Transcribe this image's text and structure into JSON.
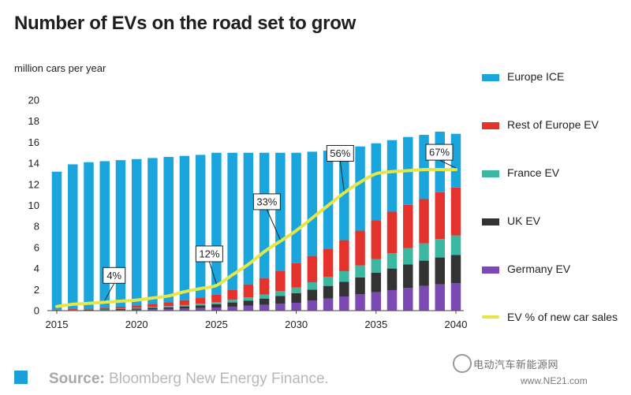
{
  "title": "Number of EVs on the road set to grow",
  "ylabel": "million cars per year",
  "source": {
    "prefix": "Source:",
    "text": "Bloomberg New Energy Finance."
  },
  "watermark": {
    "text": "电动汽车新能源网",
    "url": "www.NE21.com"
  },
  "colors": {
    "europe_ice": "#1aa6dc",
    "rest_of_europe_ev": "#e3332c",
    "france_ev": "#3bb7a2",
    "uk_ev": "#333333",
    "germany_ev": "#7c4ab3",
    "ev_share_line": "#e4e649",
    "source_box": "#1a9fd8"
  },
  "legend": [
    {
      "key": "europe_ice",
      "label": "Europe ICE",
      "kind": "bar"
    },
    {
      "key": "rest_of_europe_ev",
      "label": "Rest of Europe EV",
      "kind": "bar"
    },
    {
      "key": "france_ev",
      "label": "France EV",
      "kind": "bar"
    },
    {
      "key": "uk_ev",
      "label": "UK EV",
      "kind": "bar"
    },
    {
      "key": "germany_ev",
      "label": "Germany EV",
      "kind": "bar"
    },
    {
      "key": "ev_share_line",
      "label": "EV % of new car sales",
      "kind": "line"
    }
  ],
  "chart_data": {
    "type": "bar",
    "stacked": true,
    "title": "Number of EVs on the road set to grow",
    "ylabel": "million cars per year",
    "ylim": [
      0,
      20
    ],
    "yticks": [
      0,
      2,
      4,
      6,
      8,
      10,
      12,
      14,
      16,
      18,
      20
    ],
    "x": [
      2015,
      2016,
      2017,
      2018,
      2019,
      2020,
      2021,
      2022,
      2023,
      2024,
      2025,
      2026,
      2027,
      2028,
      2029,
      2030,
      2031,
      2032,
      2033,
      2034,
      2035,
      2036,
      2037,
      2038,
      2039,
      2040
    ],
    "xtick_labels": [
      "2015",
      "2020",
      "2025",
      "2030",
      "2035",
      "2040"
    ],
    "grid": false,
    "legend_position": "right",
    "series": [
      {
        "name": "Germany EV",
        "key": "germany_ev",
        "values": [
          0.02,
          0.03,
          0.04,
          0.06,
          0.08,
          0.1,
          0.13,
          0.16,
          0.2,
          0.25,
          0.3,
          0.38,
          0.46,
          0.55,
          0.65,
          0.75,
          0.95,
          1.15,
          1.35,
          1.55,
          1.75,
          1.95,
          2.15,
          2.35,
          2.5,
          2.6
        ]
      },
      {
        "name": "UK EV",
        "key": "uk_ev",
        "values": [
          0.02,
          0.03,
          0.04,
          0.05,
          0.07,
          0.1,
          0.13,
          0.16,
          0.2,
          0.25,
          0.3,
          0.4,
          0.5,
          0.6,
          0.75,
          0.9,
          1.05,
          1.2,
          1.4,
          1.6,
          1.85,
          2.05,
          2.25,
          2.4,
          2.55,
          2.7
        ]
      },
      {
        "name": "France EV",
        "key": "france_ev",
        "values": [
          0.01,
          0.02,
          0.03,
          0.04,
          0.05,
          0.07,
          0.09,
          0.11,
          0.13,
          0.16,
          0.2,
          0.25,
          0.3,
          0.37,
          0.45,
          0.55,
          0.7,
          0.85,
          1.0,
          1.15,
          1.3,
          1.45,
          1.55,
          1.65,
          1.75,
          1.85
        ]
      },
      {
        "name": "Rest of Europe EV",
        "key": "rest_of_europe_ev",
        "values": [
          0.05,
          0.07,
          0.1,
          0.13,
          0.17,
          0.23,
          0.3,
          0.38,
          0.47,
          0.59,
          0.7,
          0.97,
          1.24,
          1.58,
          1.95,
          2.3,
          2.5,
          2.7,
          2.95,
          3.3,
          3.7,
          3.95,
          4.1,
          4.2,
          4.45,
          4.55
        ]
      },
      {
        "name": "Europe ICE",
        "key": "europe_ice",
        "values": [
          13.1,
          13.75,
          13.89,
          13.92,
          13.93,
          13.9,
          13.85,
          13.79,
          13.7,
          13.55,
          13.5,
          13.0,
          12.5,
          11.9,
          11.2,
          10.5,
          9.9,
          9.3,
          8.7,
          8.0,
          7.3,
          6.8,
          6.45,
          6.1,
          5.75,
          5.1
        ]
      }
    ],
    "line_series": {
      "name": "EV % of new car sales",
      "key": "ev_share_line",
      "values": [
        2,
        3,
        3.5,
        4,
        4.5,
        5,
        6,
        7,
        9,
        10.5,
        12,
        17,
        22,
        28,
        33,
        38,
        44,
        50,
        56,
        61,
        65,
        66,
        66.5,
        67,
        67,
        67
      ]
    },
    "annotations": [
      {
        "text": "4%",
        "x": 2018
      },
      {
        "text": "12%",
        "x": 2025
      },
      {
        "text": "33%",
        "x": 2029
      },
      {
        "text": "56%",
        "x": 2033
      },
      {
        "text": "67%",
        "x": 2040
      }
    ]
  }
}
